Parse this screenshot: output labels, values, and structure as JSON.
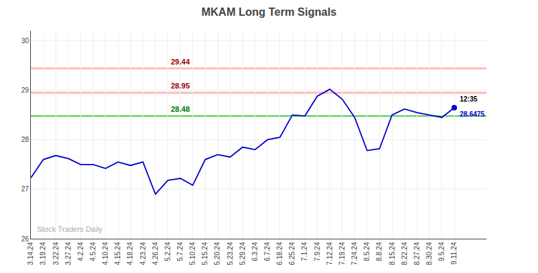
{
  "chart_data": {
    "type": "line",
    "title": "MKAM Long Term Signals",
    "categories": [
      "3.14.24",
      "3.19.24",
      "3.22.24",
      "3.27.24",
      "4.2.24",
      "4.5.24",
      "4.10.24",
      "4.15.24",
      "4.18.24",
      "4.23.24",
      "4.26.24",
      "5.2.24",
      "5.7.24",
      "5.10.24",
      "5.15.24",
      "5.20.24",
      "5.23.24",
      "5.29.24",
      "6.3.24",
      "6.7.24",
      "6.18.24",
      "6.25.24",
      "7.1.24",
      "7.9.24",
      "7.12.24",
      "7.19.24",
      "7.24.24",
      "8.5.24",
      "8.8.24",
      "8.15.24",
      "8.22.24",
      "8.27.24",
      "8.30.24",
      "9.5.24",
      "9.11.24"
    ],
    "values": [
      27.23,
      27.6,
      27.68,
      27.62,
      27.5,
      27.5,
      27.42,
      27.55,
      27.48,
      27.55,
      26.9,
      27.18,
      27.22,
      27.08,
      27.6,
      27.7,
      27.65,
      27.85,
      27.8,
      28.0,
      28.05,
      28.5,
      28.48,
      28.88,
      29.02,
      28.82,
      28.45,
      27.78,
      27.82,
      28.5,
      28.62,
      28.55,
      28.5,
      28.45,
      28.6475
    ],
    "color": "#0000cc",
    "marker": "circle",
    "ylim": [
      26.0,
      30.2
    ],
    "yticks": [
      26,
      27,
      28,
      29,
      30
    ],
    "grid": true,
    "reference_lines": [
      {
        "value": 29.44,
        "color": "#ffbbbb",
        "label": "29.44",
        "label_color": "#990000"
      },
      {
        "value": 28.95,
        "color": "#ffbbbb",
        "label": "28.95",
        "label_color": "#990000"
      },
      {
        "value": 28.48,
        "color": "#33cc33",
        "label": "28.48",
        "label_color": "#007700"
      }
    ],
    "annotations": [
      {
        "text": "12:35",
        "color": "#000000"
      },
      {
        "text": "28.6475",
        "color": "#0000cc"
      }
    ],
    "watermark": "Stock Traders Daily"
  }
}
